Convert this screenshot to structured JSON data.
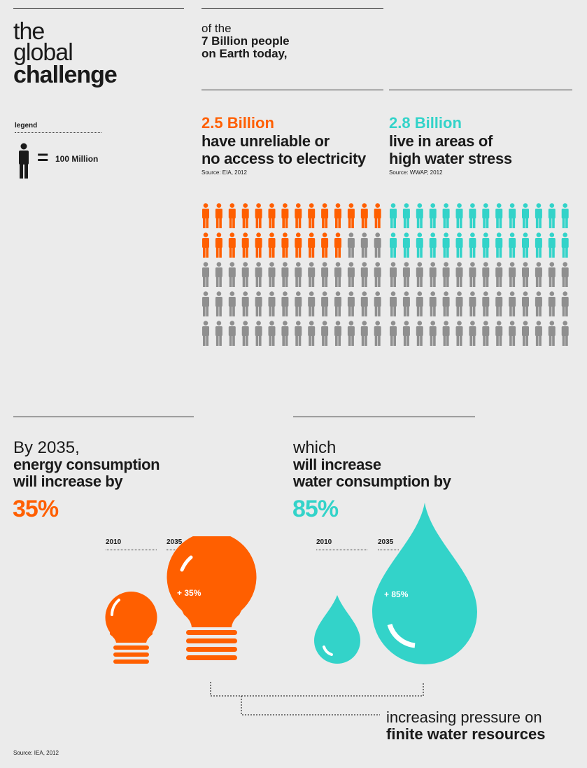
{
  "header": {
    "title_line1": "the",
    "title_line2": "global",
    "title_line3": "challenge"
  },
  "legend": {
    "label": "legend",
    "equals": "=",
    "value": "100 Million"
  },
  "intro": {
    "line1": "of the",
    "line2": "7 Billion people",
    "line3": "on Earth today,"
  },
  "electricity": {
    "number": "2.5 Billion",
    "line1": "have unreliable or",
    "line2": "no access to electricity",
    "source": "Source: EIA, 2012"
  },
  "water": {
    "number": "2.8 Billion",
    "line1": "live in areas of",
    "line2": "high water stress",
    "source": "Source: WWAP, 2012"
  },
  "energy_block": {
    "line1": "By 2035,",
    "line2": "energy consumption",
    "line3": "will increase by",
    "percent": "35%",
    "year_a": "2010",
    "year_b": "2035",
    "bulb_label": "+ 35%"
  },
  "water_block": {
    "line1": "which",
    "line2": "will increase",
    "line3": "water consumption by",
    "percent": "85%",
    "year_a": "2010",
    "year_b": "2035",
    "drop_label": "+ 85%"
  },
  "footer": {
    "line1": "increasing pressure on",
    "line2": "finite water resources",
    "source": "Source: IEA, 2012"
  },
  "colors": {
    "orange": "#ff5f00",
    "teal": "#33d3c9",
    "gray": "#8f8f8f",
    "dark": "#1a1a1a"
  },
  "chart_data": [
    {
      "type": "pictogram",
      "unit": "100 Million",
      "total_people": 7000000000,
      "icons_total": 70,
      "series": [
        {
          "name": "2.5 Billion",
          "icons": 25,
          "color": "orange"
        },
        {
          "name": "2.8 Billion",
          "icons": 28,
          "color": "teal"
        }
      ]
    },
    {
      "type": "bar",
      "categories": [
        "2010",
        "2035"
      ],
      "series": [
        {
          "name": "energy consumption",
          "values": [
            100,
            135
          ]
        },
        {
          "name": "water consumption",
          "values": [
            100,
            185
          ]
        }
      ]
    }
  ]
}
